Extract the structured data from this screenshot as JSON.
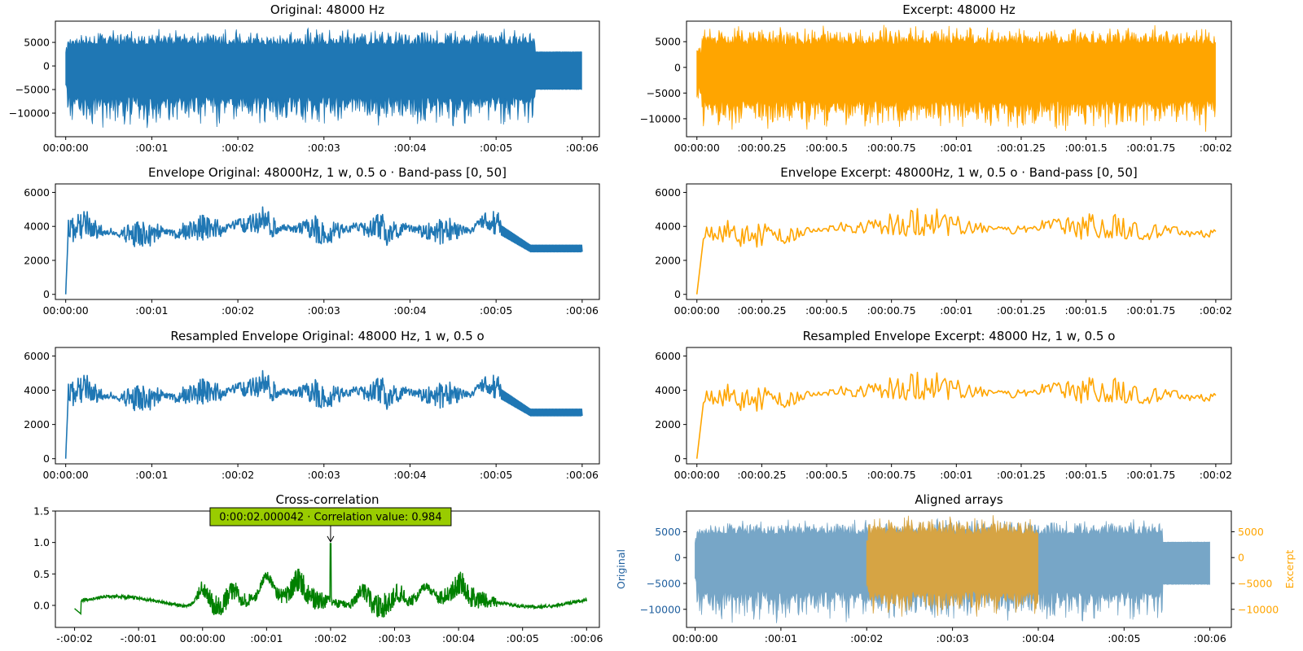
{
  "figure": {
    "background": "#ffffff"
  },
  "colors": {
    "original": "#1f77b4",
    "excerpt": "#ffa500",
    "cross_correlation": "#008000",
    "annotation_box": "#99cc00",
    "original_aligned": "#77a6c7",
    "excerpt_aligned": "#d6a444"
  },
  "chart_data": [
    {
      "id": "orig_signal",
      "type": "line",
      "title": "Original: 48000 Hz",
      "color": "#1f77b4",
      "xlim": [
        -0.12,
        6.2
      ],
      "ylim": [
        -15000,
        9500
      ],
      "x_ticks": [
        0,
        1,
        2,
        3,
        4,
        5,
        6
      ],
      "x_tick_labels": [
        "00:00:00",
        ":00:01",
        ":00:02",
        ":00:03",
        ":00:04",
        ":00:05",
        ":00:06"
      ],
      "y_ticks": [
        5000,
        0,
        -5000,
        -10000
      ],
      "y_tick_labels": [
        "5000",
        "0",
        "−5000",
        "−10000"
      ],
      "signal": {
        "kind": "audio",
        "duration": 6.0,
        "min": -13500,
        "max": 8000,
        "floor_min": -6500,
        "floor_max": 4500,
        "tail_start": 5.45,
        "tail_min": -5000,
        "tail_max": 3000,
        "seed": 11
      }
    },
    {
      "id": "excerpt_signal",
      "type": "line",
      "title": "Excerpt: 48000 Hz",
      "color": "#ffa500",
      "xlim": [
        -0.04,
        2.06
      ],
      "ylim": [
        -13500,
        9000
      ],
      "x_ticks": [
        0,
        0.25,
        0.5,
        0.75,
        1,
        1.25,
        1.5,
        1.75,
        2
      ],
      "x_tick_labels": [
        "00:00:00",
        ":00:00.25",
        ":00:00.5",
        ":00:00.75",
        ":00:01",
        ":00:01.25",
        ":00:01.5",
        ":00:01.75",
        ":00:02"
      ],
      "y_ticks": [
        5000,
        0,
        -5000,
        -10000
      ],
      "y_tick_labels": [
        "5000",
        "0",
        "−5000",
        "−10000"
      ],
      "signal": {
        "kind": "audio",
        "duration": 2.0,
        "min": -12800,
        "max": 8400,
        "floor_min": -6500,
        "floor_max": 4500,
        "seed": 29
      }
    },
    {
      "id": "orig_envelope",
      "type": "line",
      "title": "Envelope Original: 48000Hz, 1 w, 0.5 o · Band-pass [0, 50]",
      "color": "#1f77b4",
      "xlim": [
        -0.12,
        6.2
      ],
      "ylim": [
        -300,
        6500
      ],
      "x_ticks": [
        0,
        1,
        2,
        3,
        4,
        5,
        6
      ],
      "x_tick_labels": [
        "00:00:00",
        ":00:01",
        ":00:02",
        ":00:03",
        ":00:04",
        ":00:05",
        ":00:06"
      ],
      "y_ticks": [
        6000,
        4000,
        2000,
        0
      ],
      "y_tick_labels": [
        "6000",
        "4000",
        "2000",
        "0"
      ],
      "signal": {
        "kind": "envelope",
        "duration": 6.0,
        "min": 1500,
        "max": 6200,
        "mean": 3800,
        "tail_start": 5.05,
        "tail_value": 2700,
        "seed": 41
      }
    },
    {
      "id": "excerpt_envelope",
      "type": "line",
      "title": "Envelope Excerpt: 48000Hz, 1 w, 0.5 o · Band-pass [0, 50]",
      "color": "#ffa500",
      "xlim": [
        -0.04,
        2.06
      ],
      "ylim": [
        -300,
        6500
      ],
      "x_ticks": [
        0,
        0.25,
        0.5,
        0.75,
        1,
        1.25,
        1.5,
        1.75,
        2
      ],
      "x_tick_labels": [
        "00:00:00",
        ":00:00.25",
        ":00:00.5",
        ":00:00.75",
        ":00:01",
        ":00:01.25",
        ":00:01.5",
        ":00:01.75",
        ":00:02"
      ],
      "y_ticks": [
        6000,
        4000,
        2000,
        0
      ],
      "y_tick_labels": [
        "6000",
        "4000",
        "2000",
        "0"
      ],
      "signal": {
        "kind": "envelope",
        "duration": 2.0,
        "min": 2100,
        "max": 6200,
        "mean": 3900,
        "seed": 53
      }
    },
    {
      "id": "orig_resampled",
      "type": "line",
      "title": "Resampled Envelope Original: 48000 Hz, 1 w, 0.5 o",
      "color": "#1f77b4",
      "xlim": [
        -0.12,
        6.2
      ],
      "ylim": [
        -300,
        6500
      ],
      "x_ticks": [
        0,
        1,
        2,
        3,
        4,
        5,
        6
      ],
      "x_tick_labels": [
        "00:00:00",
        ":00:01",
        ":00:02",
        ":00:03",
        ":00:04",
        ":00:05",
        ":00:06"
      ],
      "y_ticks": [
        6000,
        4000,
        2000,
        0
      ],
      "y_tick_labels": [
        "6000",
        "4000",
        "2000",
        "0"
      ],
      "signal": {
        "kind": "envelope",
        "duration": 6.0,
        "min": 1500,
        "max": 6200,
        "mean": 3800,
        "tail_start": 5.05,
        "tail_value": 2700,
        "seed": 41
      }
    },
    {
      "id": "excerpt_resampled",
      "type": "line",
      "title": "Resampled Envelope Excerpt: 48000 Hz, 1 w, 0.5 o",
      "color": "#ffa500",
      "xlim": [
        -0.04,
        2.06
      ],
      "ylim": [
        -300,
        6500
      ],
      "x_ticks": [
        0,
        0.25,
        0.5,
        0.75,
        1,
        1.25,
        1.5,
        1.75,
        2
      ],
      "x_tick_labels": [
        "00:00:00",
        ":00:00.25",
        ":00:00.5",
        ":00:00.75",
        ":00:01",
        ":00:01.25",
        ":00:01.5",
        ":00:01.75",
        ":00:02"
      ],
      "y_ticks": [
        6000,
        4000,
        2000,
        0
      ],
      "y_tick_labels": [
        "6000",
        "4000",
        "2000",
        "0"
      ],
      "signal": {
        "kind": "envelope",
        "duration": 2.0,
        "min": 2100,
        "max": 6200,
        "mean": 3900,
        "seed": 53
      }
    },
    {
      "id": "cross_correlation",
      "type": "line",
      "title": "Cross-correlation",
      "color": "#008000",
      "xlim": [
        -2.3,
        6.2
      ],
      "ylim": [
        -0.35,
        1.5
      ],
      "x_ticks": [
        -2,
        -1,
        0,
        1,
        2,
        3,
        4,
        5,
        6
      ],
      "x_tick_labels": [
        "-:00:02",
        "-:00:01",
        "00:00:00",
        ":00:01",
        ":00:02",
        ":00:03",
        ":00:04",
        ":00:05",
        ":00:06"
      ],
      "y_ticks": [
        1.5,
        1.0,
        0.5,
        0.0
      ],
      "y_tick_labels": [
        "1.5",
        "1.0",
        "0.5",
        "0.0"
      ],
      "peak": {
        "x": 2.000042,
        "y": 0.984
      },
      "annotation": "0:00:02.000042 · Correlation value: 0.984",
      "signal": {
        "kind": "xcorr",
        "duration": 8.0,
        "x_start": -2.0,
        "seed": 67
      }
    },
    {
      "id": "aligned_arrays",
      "type": "line",
      "title": "Aligned arrays",
      "xlim": [
        -0.1,
        6.25
      ],
      "ylim": [
        -13500,
        9000
      ],
      "x_ticks": [
        0,
        1,
        2,
        3,
        4,
        5,
        6
      ],
      "x_tick_labels": [
        "00:00:00",
        ":00:01",
        ":00:02",
        ":00:03",
        ":00:04",
        ":00:05",
        ":00:06"
      ],
      "ylabel_left": "Original",
      "ylabel_right": "Excerpt",
      "y_ticks": [
        5000,
        0,
        -5000,
        -10000
      ],
      "y_tick_labels": [
        "5000",
        "0",
        "−5000",
        "−10000"
      ],
      "series": [
        {
          "name": "Original",
          "color": "#77a6c7",
          "x_start": 0,
          "x_end": 6
        },
        {
          "name": "Excerpt",
          "color": "#d6a444",
          "x_start": 2,
          "x_end": 4
        }
      ]
    }
  ]
}
